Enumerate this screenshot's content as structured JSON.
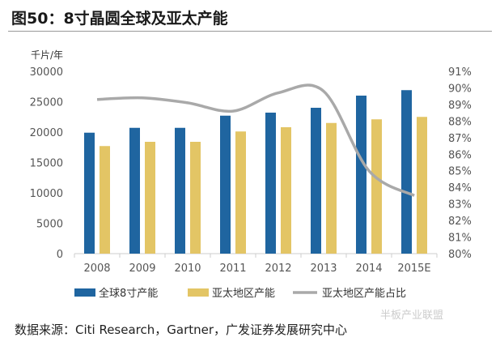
{
  "title": "图50：8寸晶圆全球及亚太产能",
  "source": "数据来源：Citi Research，Gartner，广发证券发展研究中心",
  "watermark": "半板产业联盟",
  "chart_data": {
    "type": "bar",
    "categories": [
      "2008",
      "2009",
      "2010",
      "2011",
      "2012",
      "2013",
      "2014",
      "2015E"
    ],
    "ylabel": "千片/年",
    "ylim": [
      0,
      30000
    ],
    "yticks": [
      0,
      5000,
      10000,
      15000,
      20000,
      25000,
      30000
    ],
    "y2lim": [
      80,
      91
    ],
    "y2ticks": [
      "80%",
      "81%",
      "82%",
      "83%",
      "84%",
      "85%",
      "86%",
      "87%",
      "88%",
      "89%",
      "90%",
      "91%"
    ],
    "series": [
      {
        "name": "全球8寸产能",
        "type": "bar",
        "color": "#1f65a0",
        "values": [
          19900,
          20700,
          20700,
          22700,
          23200,
          24000,
          26000,
          26900
        ]
      },
      {
        "name": "亚太地区产能",
        "type": "bar",
        "color": "#e3c565",
        "values": [
          17700,
          18400,
          18400,
          20100,
          20800,
          21500,
          22100,
          22500
        ]
      },
      {
        "name": "亚太地区产能占比",
        "type": "line",
        "axis": "right",
        "color": "#a9a9a9",
        "values": [
          89.3,
          89.4,
          89.1,
          88.6,
          89.7,
          89.8,
          85.0,
          83.5
        ]
      }
    ],
    "legend": "bottom",
    "grid": false
  }
}
